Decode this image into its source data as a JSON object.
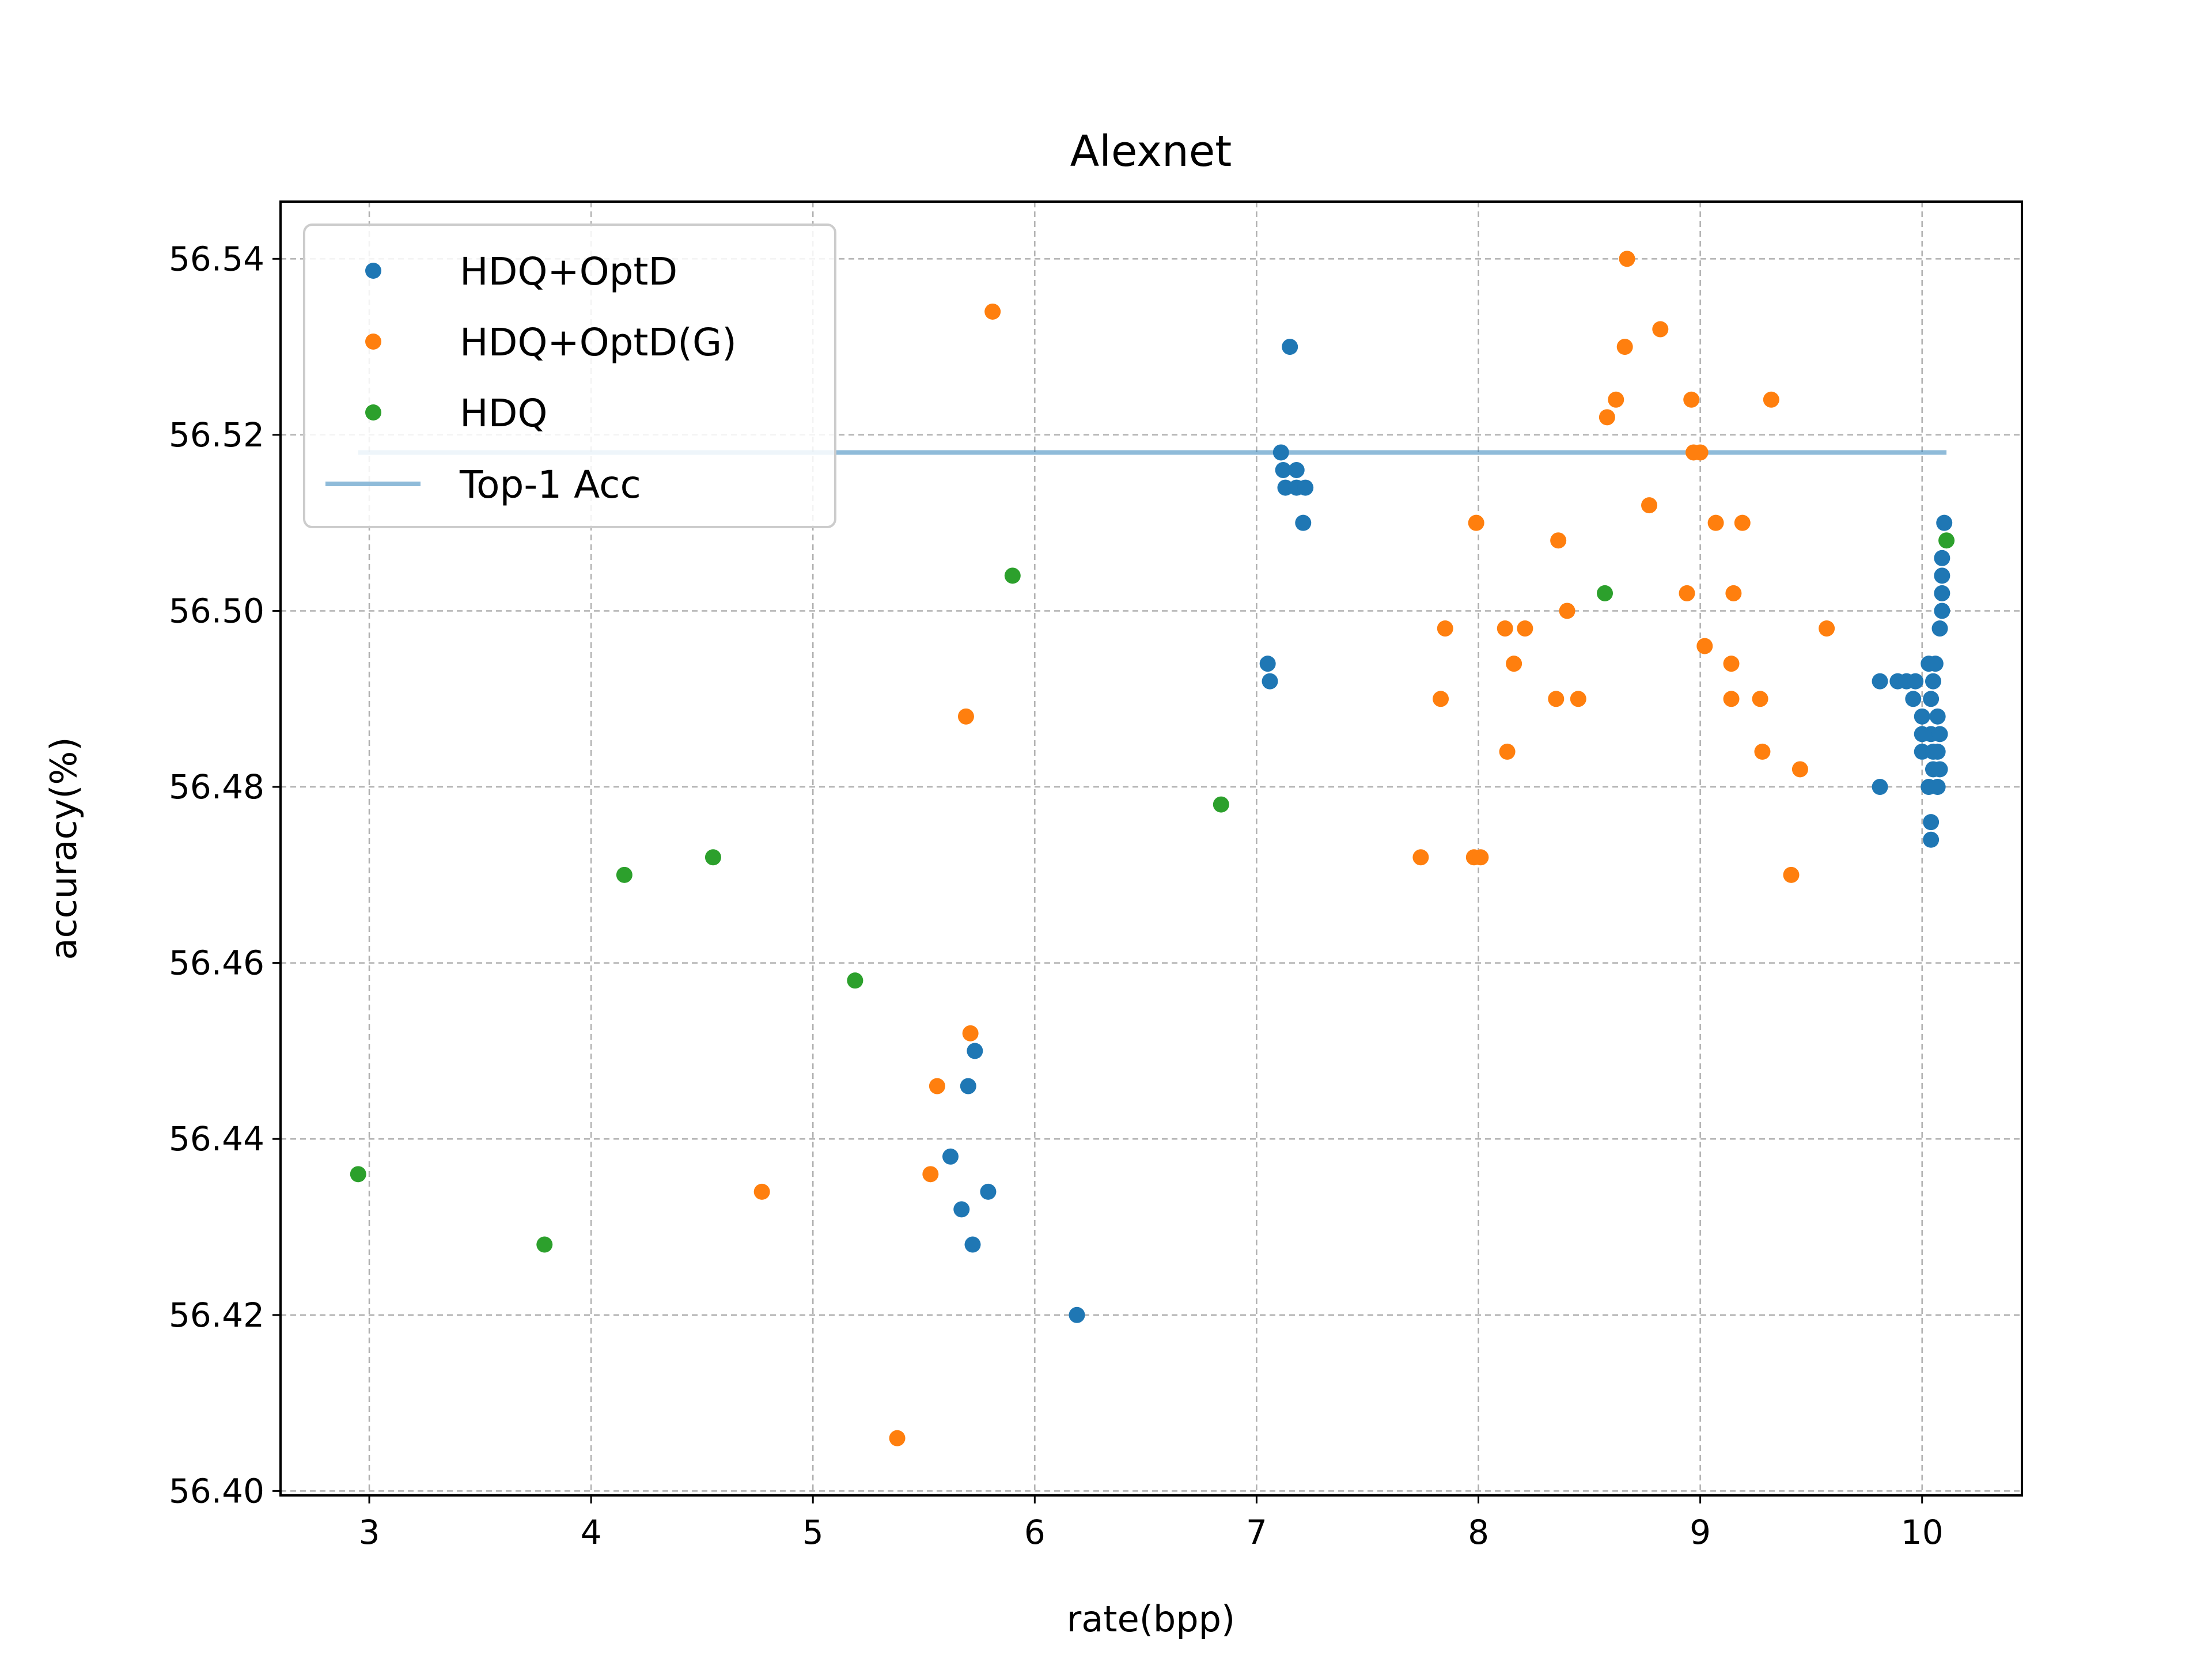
{
  "chart_data": {
    "type": "scatter",
    "title": "Alexnet",
    "xlabel": "rate(bpp)",
    "ylabel": "accuracy(%)",
    "xlim": [
      2.6,
      10.45
    ],
    "ylim": [
      56.3995,
      56.5465
    ],
    "xticks": [
      3,
      4,
      5,
      6,
      7,
      8,
      9,
      10
    ],
    "yticks": [
      56.4,
      56.42,
      56.44,
      56.46,
      56.48,
      56.5,
      56.52,
      56.54
    ],
    "xtick_labels": [
      "3",
      "4",
      "5",
      "6",
      "7",
      "8",
      "9",
      "10"
    ],
    "ytick_labels": [
      "56.40",
      "56.42",
      "56.44",
      "56.46",
      "56.48",
      "56.50",
      "56.52",
      "56.54"
    ],
    "grid": true,
    "legend_position": "top-left",
    "series": [
      {
        "name": "HDQ+OptD",
        "color": "#1f77b4",
        "marker": "dot",
        "points": [
          [
            7.15,
            56.53
          ],
          [
            7.11,
            56.518
          ],
          [
            7.12,
            56.516
          ],
          [
            7.18,
            56.516
          ],
          [
            7.13,
            56.514
          ],
          [
            7.18,
            56.514
          ],
          [
            7.22,
            56.514
          ],
          [
            7.21,
            56.51
          ],
          [
            7.05,
            56.494
          ],
          [
            7.06,
            56.492
          ],
          [
            5.73,
            56.45
          ],
          [
            5.7,
            56.446
          ],
          [
            5.62,
            56.438
          ],
          [
            5.79,
            56.434
          ],
          [
            5.67,
            56.432
          ],
          [
            5.72,
            56.428
          ],
          [
            6.19,
            56.42
          ],
          [
            9.81,
            56.492
          ],
          [
            9.89,
            56.492
          ],
          [
            9.93,
            56.492
          ],
          [
            9.97,
            56.492
          ],
          [
            9.96,
            56.49
          ],
          [
            10.0,
            56.488
          ],
          [
            10.0,
            56.486
          ],
          [
            10.0,
            56.484
          ],
          [
            9.81,
            56.48
          ],
          [
            10.03,
            56.494
          ],
          [
            10.06,
            56.494
          ],
          [
            10.05,
            56.492
          ],
          [
            10.04,
            56.49
          ],
          [
            10.07,
            56.488
          ],
          [
            10.04,
            56.486
          ],
          [
            10.08,
            56.486
          ],
          [
            10.05,
            56.484
          ],
          [
            10.07,
            56.484
          ],
          [
            10.05,
            56.482
          ],
          [
            10.08,
            56.482
          ],
          [
            10.03,
            56.48
          ],
          [
            10.07,
            56.48
          ],
          [
            10.04,
            56.476
          ],
          [
            10.04,
            56.474
          ],
          [
            10.1,
            56.51
          ],
          [
            10.09,
            56.506
          ],
          [
            10.09,
            56.504
          ],
          [
            10.09,
            56.502
          ],
          [
            10.09,
            56.5
          ],
          [
            10.08,
            56.498
          ]
        ]
      },
      {
        "name": "HDQ+OptD(G)",
        "color": "#ff7f0e",
        "marker": "dot",
        "points": [
          [
            5.81,
            56.534
          ],
          [
            5.69,
            56.488
          ],
          [
            5.71,
            56.452
          ],
          [
            5.56,
            56.446
          ],
          [
            5.53,
            56.436
          ],
          [
            4.77,
            56.434
          ],
          [
            5.38,
            56.406
          ],
          [
            8.67,
            56.54
          ],
          [
            8.82,
            56.532
          ],
          [
            8.66,
            56.53
          ],
          [
            8.62,
            56.524
          ],
          [
            8.96,
            56.524
          ],
          [
            9.32,
            56.524
          ],
          [
            8.58,
            56.522
          ],
          [
            8.97,
            56.518
          ],
          [
            9.0,
            56.518
          ],
          [
            8.77,
            56.512
          ],
          [
            7.99,
            56.51
          ],
          [
            9.07,
            56.51
          ],
          [
            9.19,
            56.51
          ],
          [
            8.36,
            56.508
          ],
          [
            8.94,
            56.502
          ],
          [
            9.15,
            56.502
          ],
          [
            8.4,
            56.5
          ],
          [
            7.85,
            56.498
          ],
          [
            8.12,
            56.498
          ],
          [
            8.21,
            56.498
          ],
          [
            9.57,
            56.498
          ],
          [
            9.02,
            56.496
          ],
          [
            8.16,
            56.494
          ],
          [
            9.14,
            56.494
          ],
          [
            7.83,
            56.49
          ],
          [
            8.35,
            56.49
          ],
          [
            8.45,
            56.49
          ],
          [
            9.14,
            56.49
          ],
          [
            9.27,
            56.49
          ],
          [
            8.13,
            56.484
          ],
          [
            9.28,
            56.484
          ],
          [
            9.45,
            56.482
          ],
          [
            7.74,
            56.472
          ],
          [
            7.98,
            56.472
          ],
          [
            8.01,
            56.472
          ],
          [
            9.41,
            56.47
          ]
        ]
      },
      {
        "name": "HDQ",
        "color": "#2ca02c",
        "marker": "dot",
        "points": [
          [
            5.9,
            56.504
          ],
          [
            8.57,
            56.502
          ],
          [
            10.11,
            56.508
          ],
          [
            6.84,
            56.478
          ],
          [
            4.55,
            56.472
          ],
          [
            4.15,
            56.47
          ],
          [
            5.19,
            56.458
          ],
          [
            2.95,
            56.436
          ],
          [
            3.79,
            56.428
          ]
        ]
      },
      {
        "name": "Top-1 Acc",
        "color": "#1f77b4",
        "marker": "line",
        "opacity": 0.5,
        "points": [
          [
            2.95,
            56.518
          ],
          [
            10.11,
            56.518
          ]
        ]
      }
    ]
  }
}
